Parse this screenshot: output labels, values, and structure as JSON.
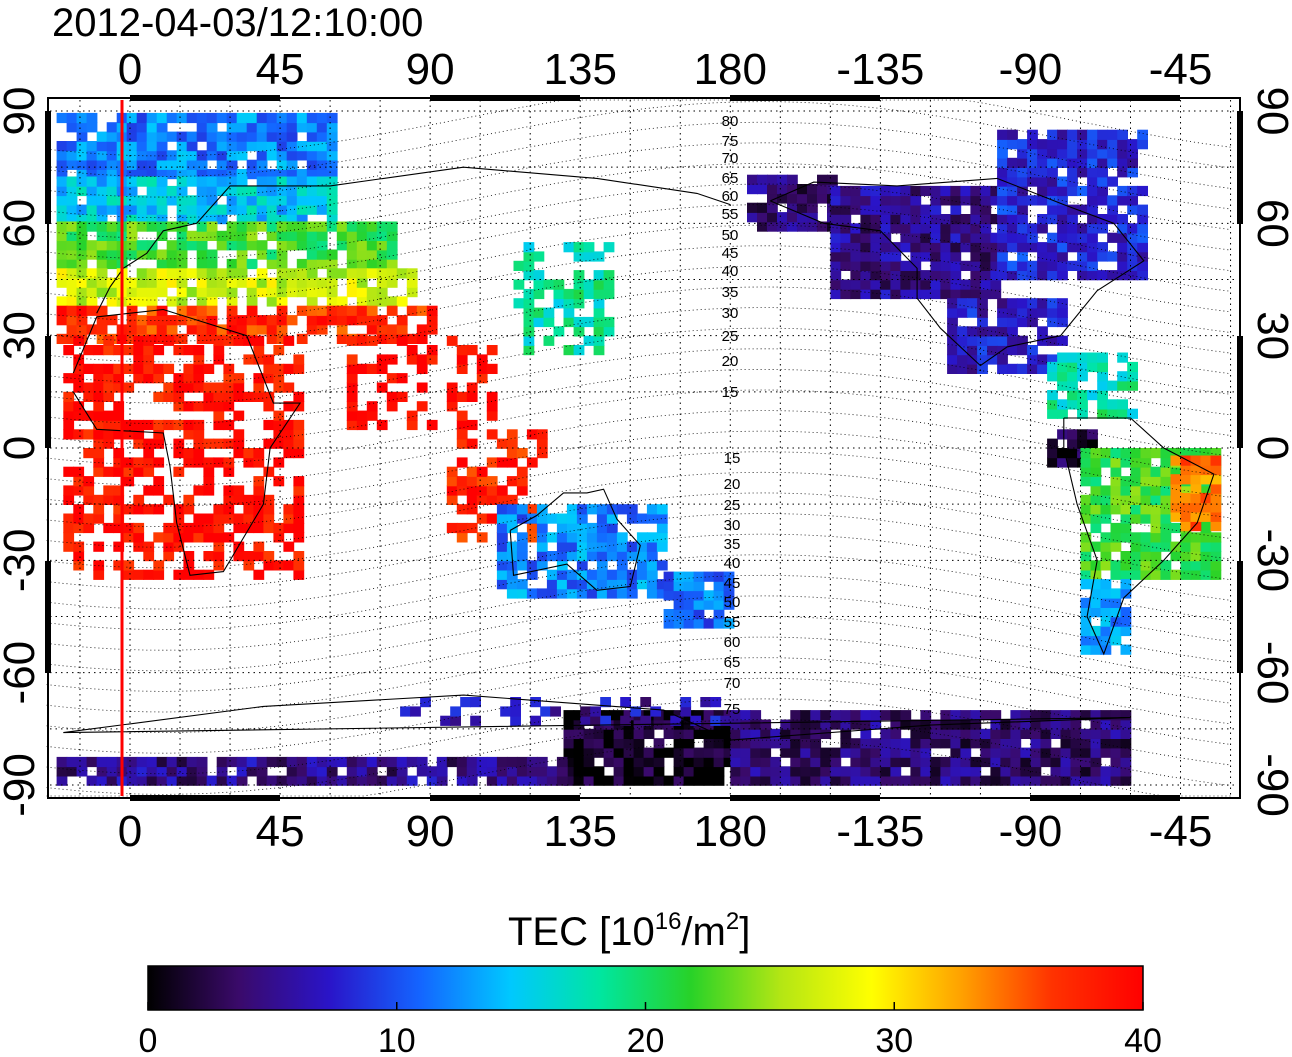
{
  "timestamp": "2012-04-03/12:10:00",
  "map": {
    "lon_labels_top": [
      "0",
      "45",
      "90",
      "135",
      "180",
      "-135",
      "-90",
      "-45"
    ],
    "lon_labels_bottom": [
      "0",
      "45",
      "90",
      "135",
      "180",
      "-135",
      "-90",
      "-45"
    ],
    "lat_labels_left": [
      "90",
      "60",
      "30",
      "0",
      "-30",
      "-60",
      "-90"
    ],
    "lat_labels_right": [
      "90",
      "60",
      "30",
      "0",
      "-30",
      "-60",
      "-90"
    ],
    "lon_values": [
      0,
      45,
      90,
      135,
      180,
      -135,
      -90,
      -45
    ],
    "lat_values": [
      90,
      60,
      30,
      0,
      -30,
      -60,
      -90
    ],
    "terminator_longitude": -2,
    "terminator_color": "#ff0000",
    "mlat_labels_north": [
      "80",
      "75",
      "70",
      "65",
      "60",
      "55",
      "50",
      "45",
      "40",
      "35",
      "30",
      "25",
      "20",
      "15"
    ],
    "mlat_labels_south": [
      "15",
      "20",
      "25",
      "30",
      "35",
      "40",
      "45",
      "50",
      "55",
      "60",
      "65",
      "70",
      "75"
    ]
  },
  "colorbar": {
    "title_main": "TEC  [10",
    "title_sup1": "16",
    "title_mid": "/m",
    "title_sup2": "2",
    "title_end": "]",
    "tick_labels": [
      "0",
      "10",
      "20",
      "30",
      "40"
    ],
    "min": 0,
    "max": 40,
    "colors": [
      "#000000",
      "#3a0a6a",
      "#2a14c8",
      "#1464ff",
      "#00c8ff",
      "#00e6a0",
      "#28d228",
      "#b4e614",
      "#ffff00",
      "#ffa000",
      "#ff3200",
      "#ff0000"
    ]
  }
}
